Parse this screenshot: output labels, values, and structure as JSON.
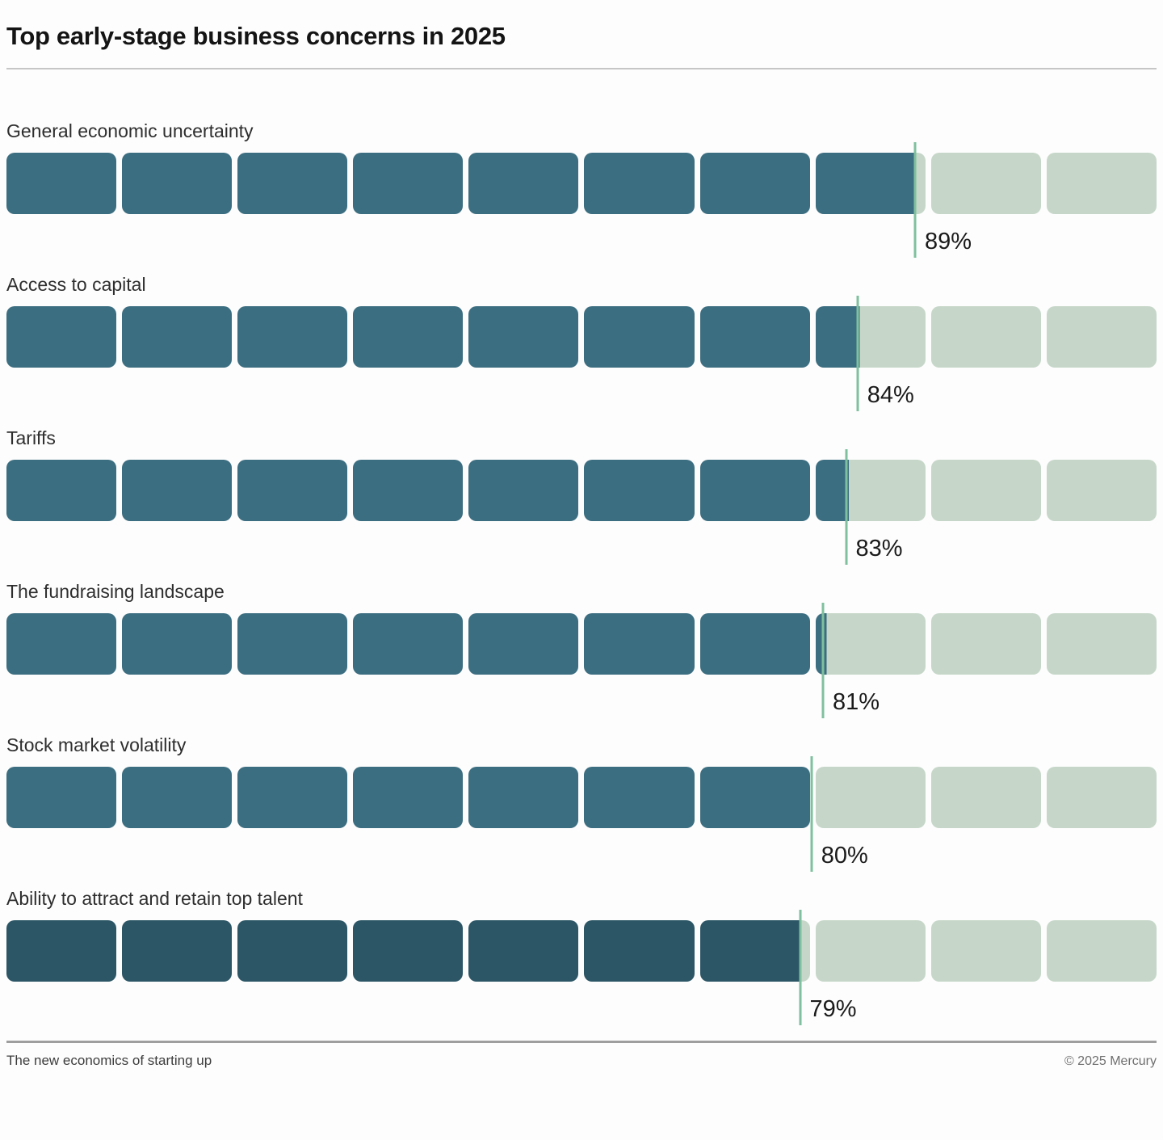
{
  "title": "Top early-stage business concerns in 2025",
  "chart_data": {
    "type": "bar",
    "title": "Top early-stage business concerns in 2025",
    "categories": [
      "General economic uncertainty",
      "Access to capital",
      "Tariffs",
      "The fundraising landscape",
      "Stock market volatility",
      "Ability to attract and retain top talent"
    ],
    "values": [
      89,
      84,
      83,
      81,
      80,
      79
    ],
    "unit": "%",
    "xlabel": "",
    "ylabel": "",
    "xlim": [
      0,
      100
    ],
    "segments_per_bar": 10,
    "bar_colors": [
      "#3C6E81",
      "#3C6E81",
      "#3C6E81",
      "#3C6E81",
      "#3C6E81",
      "#2C5666"
    ],
    "empty_segment_color": "#C6D7C9",
    "tick_color": "#7FC09E",
    "value_label_color": "#1B1B1B",
    "legend": null,
    "grid": false
  },
  "footer": {
    "left": "The new economics of starting up",
    "right": "© 2025 Mercury"
  }
}
